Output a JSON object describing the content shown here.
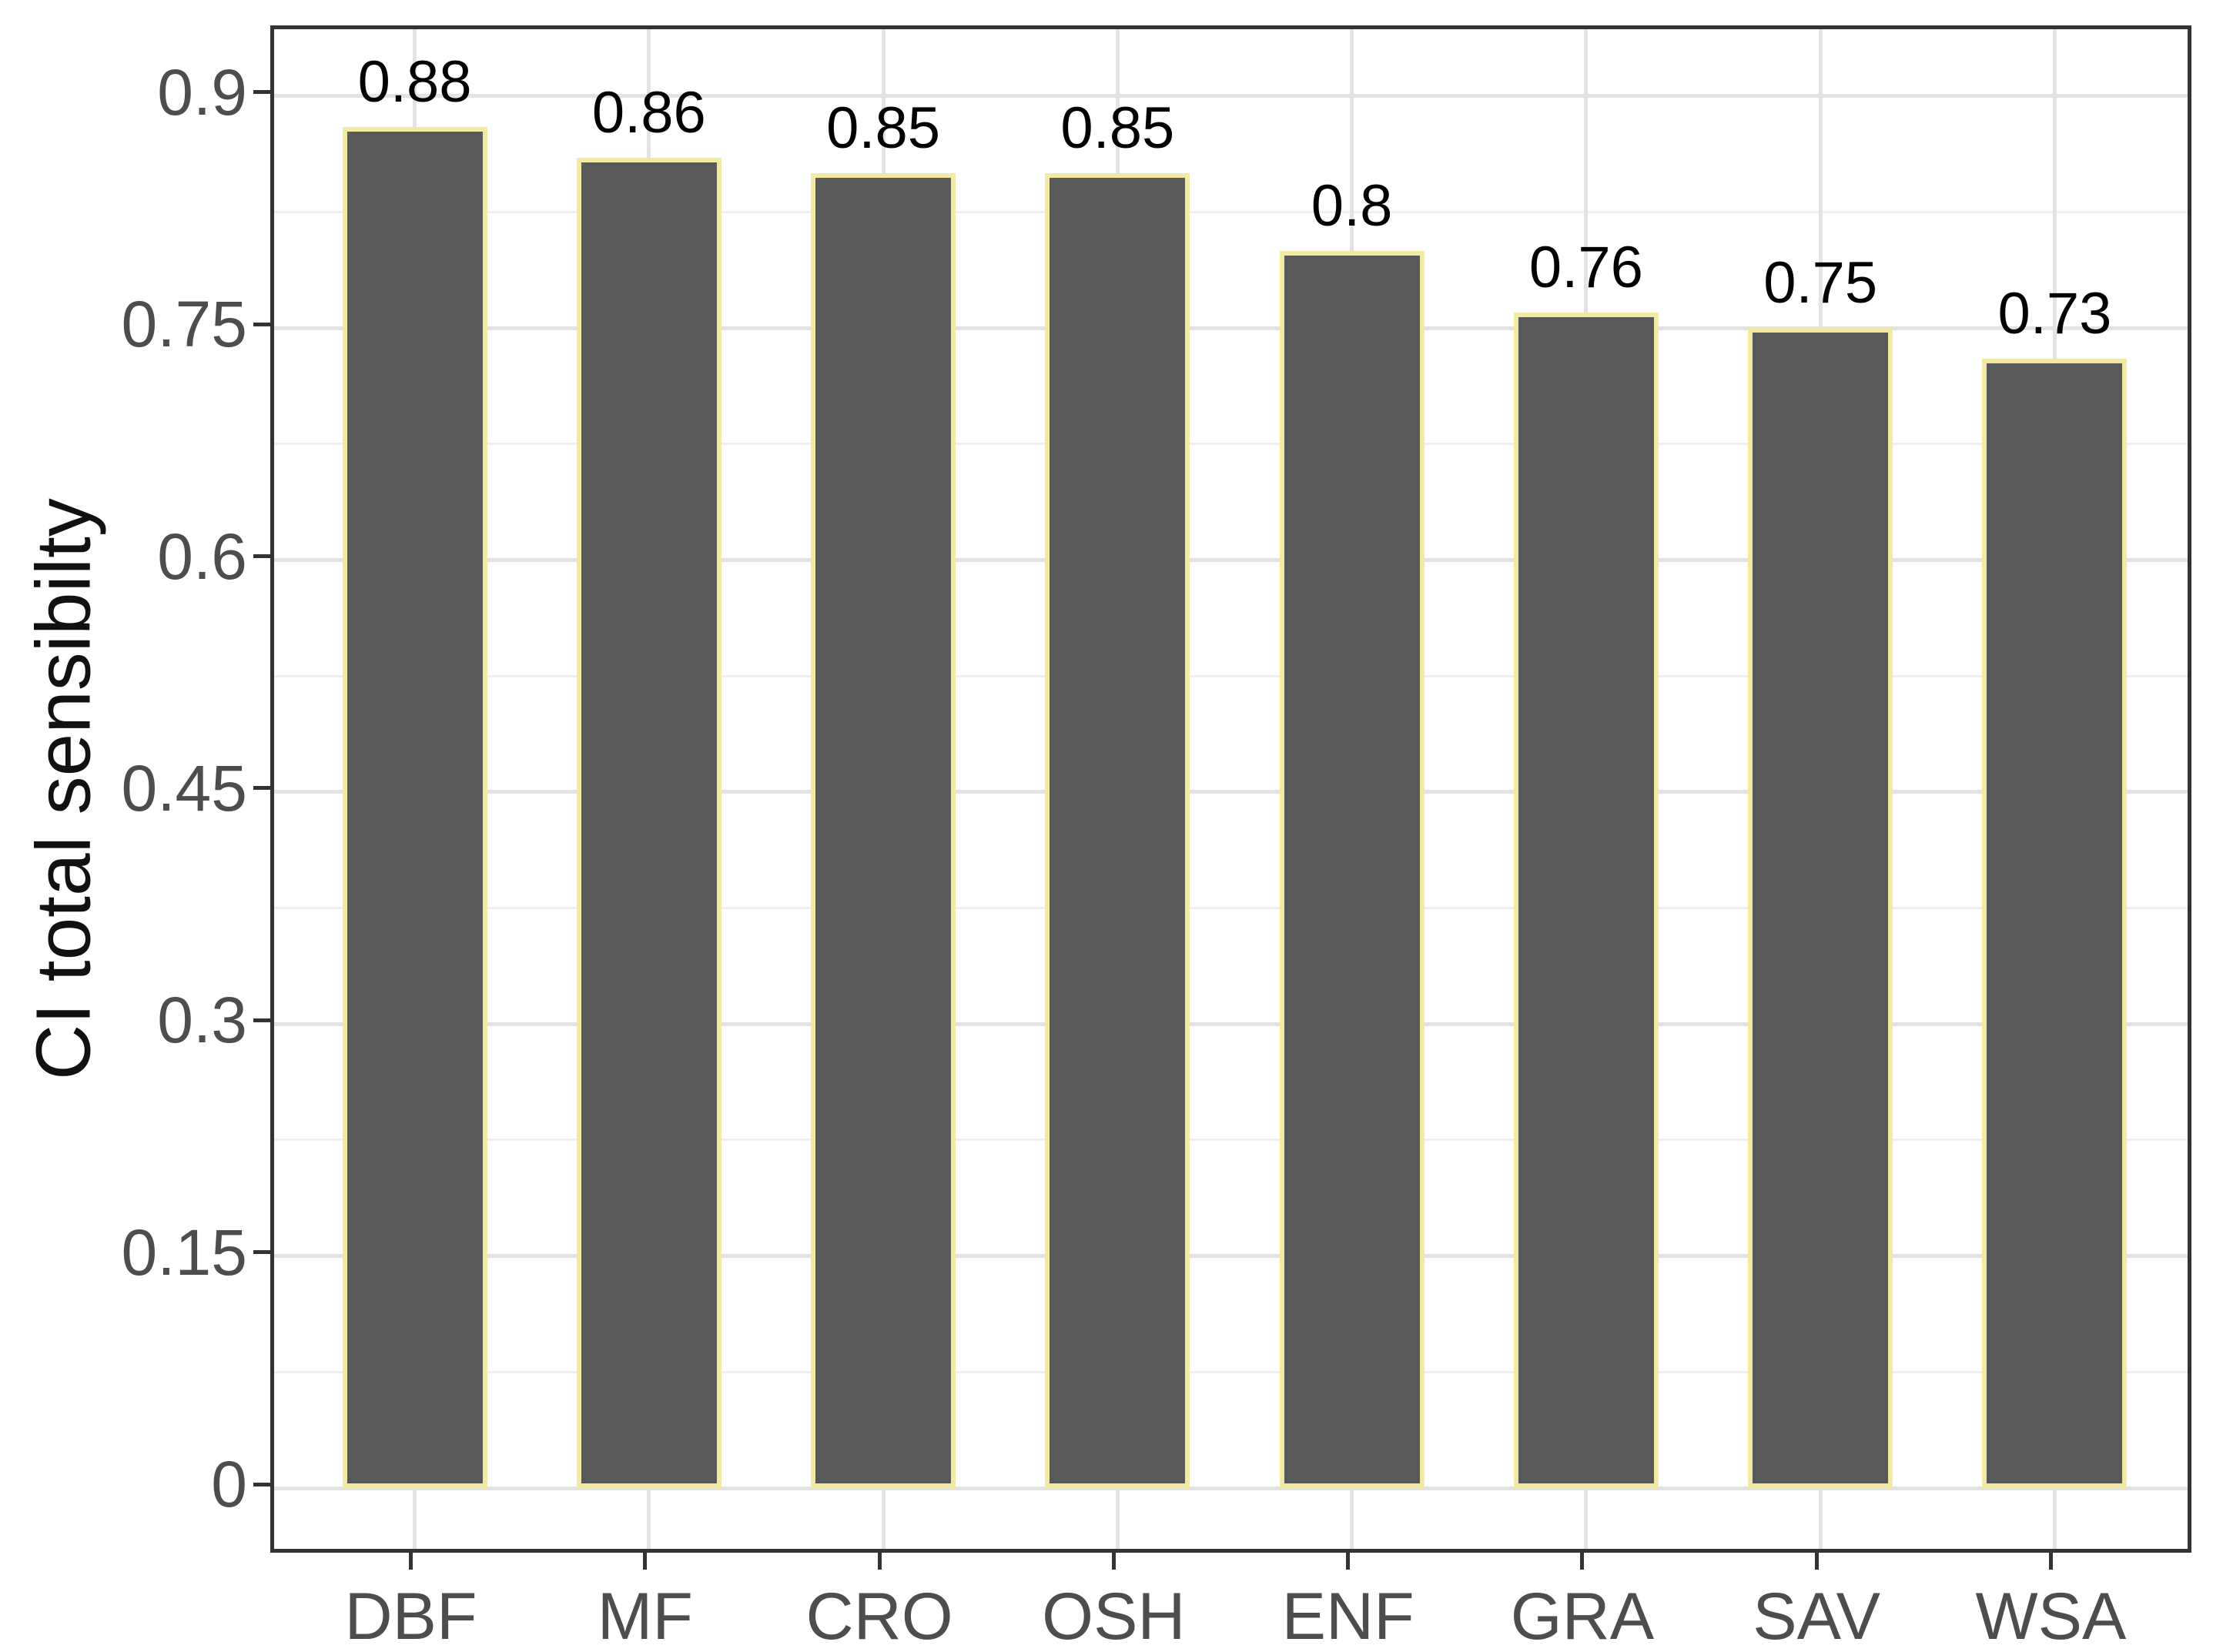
{
  "chart_data": {
    "type": "bar",
    "categories": [
      "DBF",
      "MF",
      "CRO",
      "OSH",
      "ENF",
      "GRA",
      "SAV",
      "WSA"
    ],
    "values": [
      0.88,
      0.86,
      0.85,
      0.85,
      0.8,
      0.76,
      0.75,
      0.73
    ],
    "bar_labels": [
      "0.88",
      "0.86",
      "0.85",
      "0.85",
      "0.8",
      "0.76",
      "0.75",
      "0.73"
    ],
    "title": "",
    "xlabel": "",
    "ylabel": "CI total sensibilty",
    "y_ticks": [
      0,
      0.15,
      0.3,
      0.45,
      0.6,
      0.75,
      0.9
    ],
    "y_tick_labels": [
      "0",
      "0.15",
      "0.3",
      "0.45",
      "0.6",
      "0.75",
      "0.9"
    ],
    "y_minor_step": 0.075,
    "ylim": [
      -0.044,
      0.943
    ],
    "grid": "major-and-minor",
    "legend_position": "none",
    "colors": {
      "background": "#FFFFFF",
      "panel_border": "#333333",
      "bar_fill": "#595959",
      "bar_border": "#F2E9A3",
      "grid_major": "#E3E3E3",
      "grid_minor": "#EFEFEF",
      "tick_mark": "#333333",
      "tick_label": "#4D4D4D",
      "bar_label": "#000000",
      "axis_title": "#111111"
    }
  }
}
